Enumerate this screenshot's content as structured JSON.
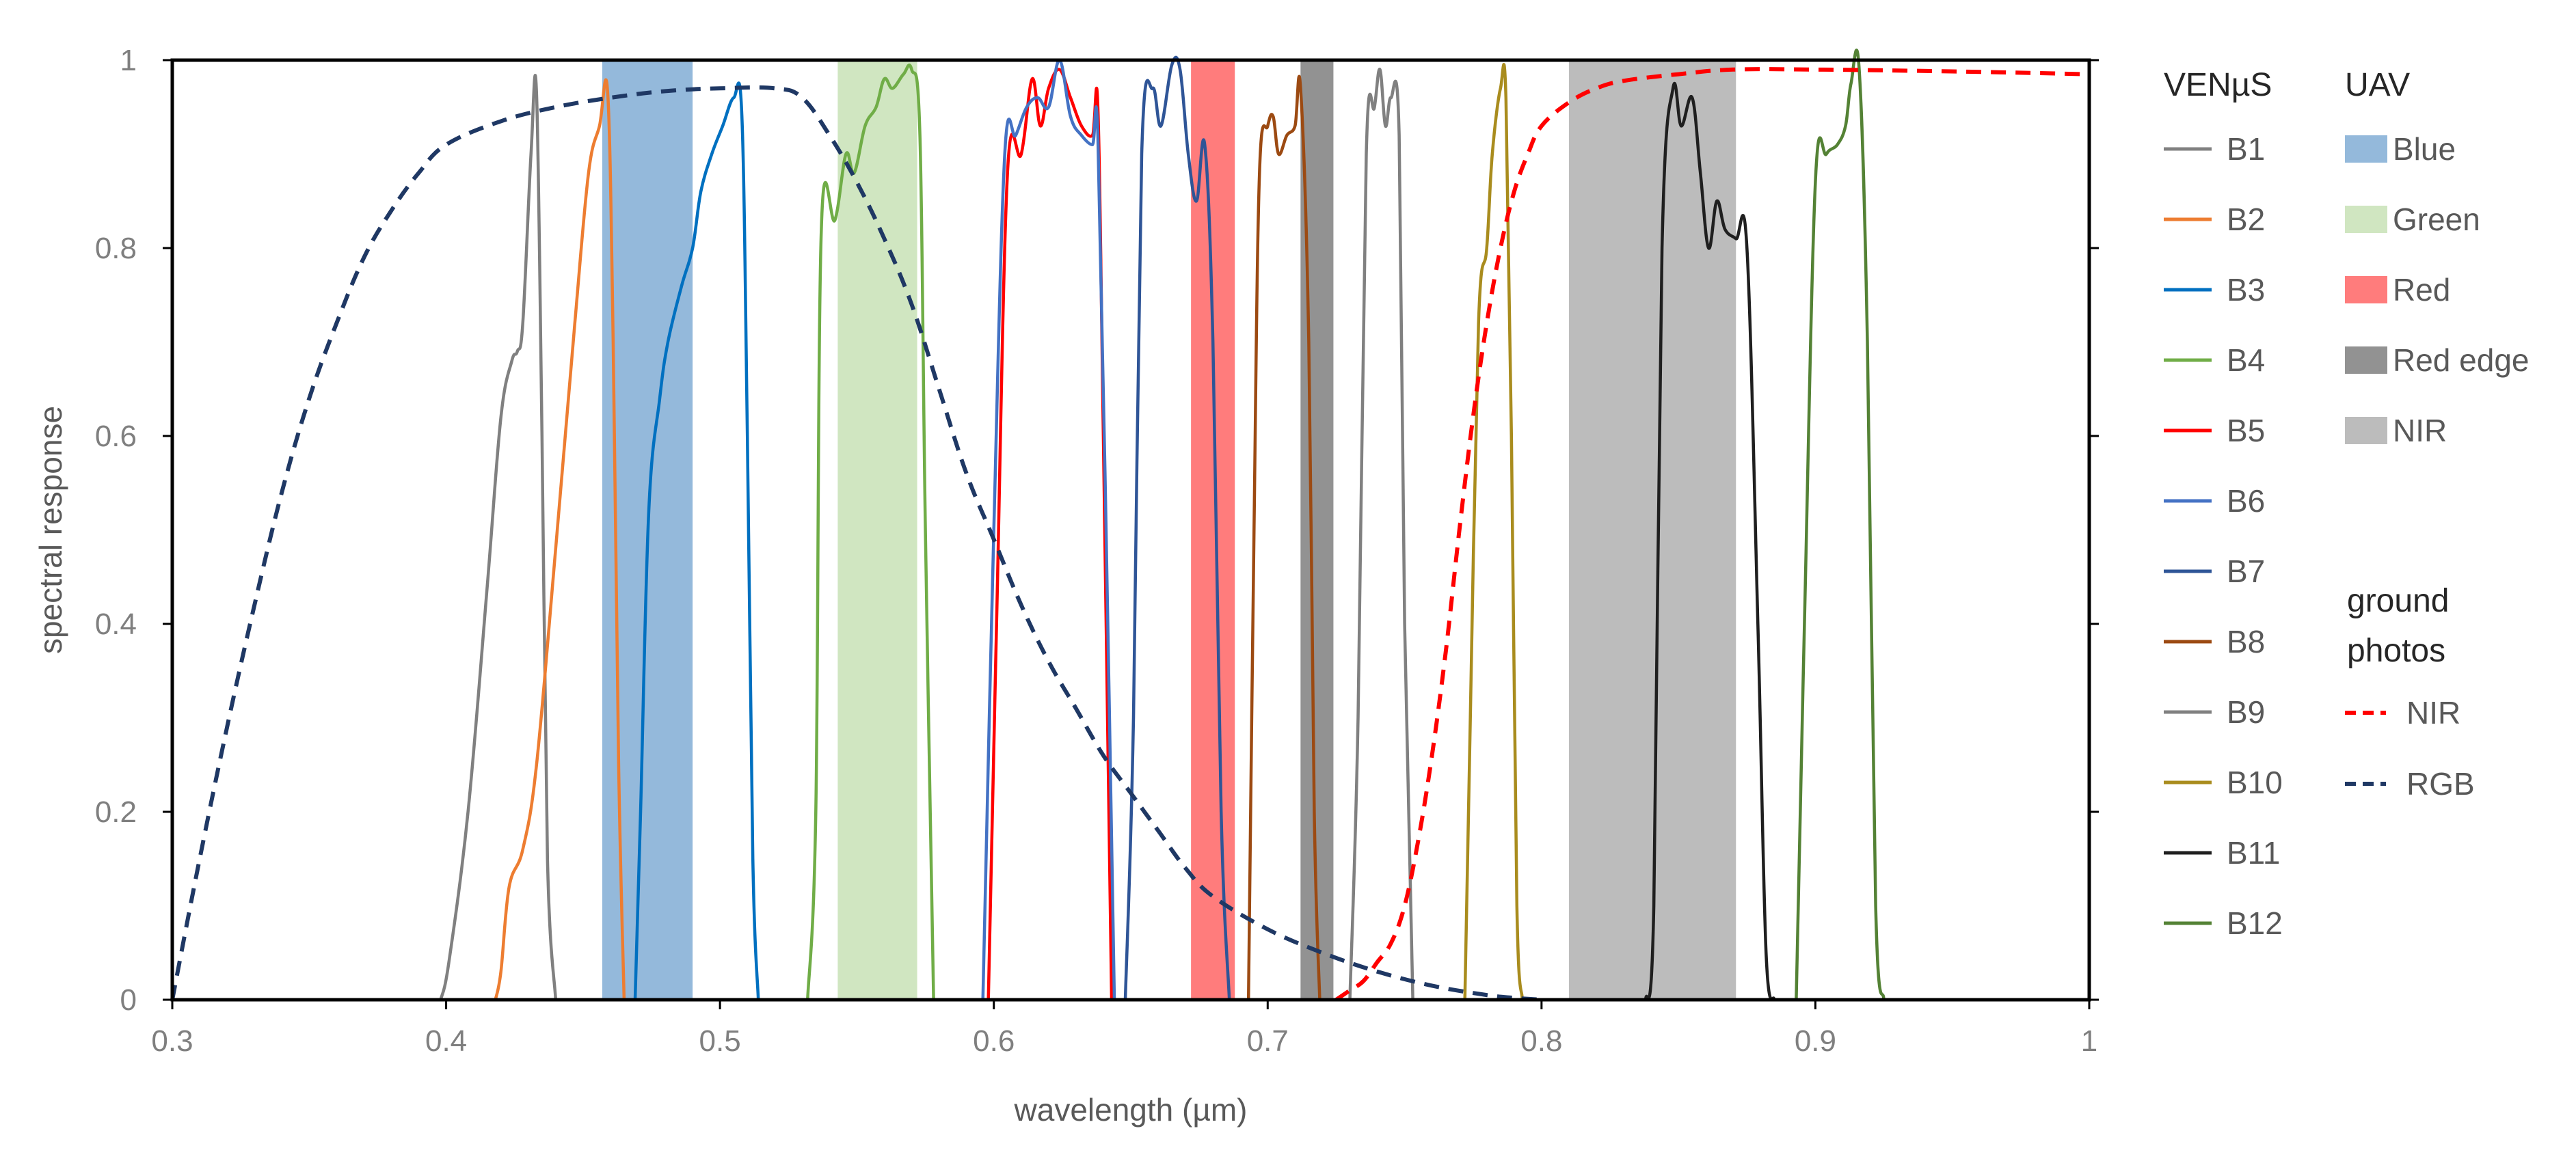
{
  "chart_data": {
    "type": "line",
    "title": "",
    "xlabel": "wavelength (µm)",
    "ylabel": "spectral response",
    "xlim": [
      0.3,
      1.0
    ],
    "ylim": [
      0,
      1
    ],
    "grid": false,
    "legend_placement": "right",
    "x_ticks": [
      {
        "value": 0.3,
        "label": "0.3"
      },
      {
        "value": 0.4,
        "label": "0.4"
      },
      {
        "value": 0.5,
        "label": "0.5"
      },
      {
        "value": 0.6,
        "label": "0.6"
      },
      {
        "value": 0.7,
        "label": "0.7"
      },
      {
        "value": 0.8,
        "label": "0.8"
      },
      {
        "value": 0.9,
        "label": "0.9"
      },
      {
        "value": 1.0,
        "label": "1"
      }
    ],
    "y_ticks": [
      {
        "value": 0,
        "label": "0"
      },
      {
        "value": 0.2,
        "label": "0.2"
      },
      {
        "value": 0.4,
        "label": "0.4"
      },
      {
        "value": 0.6,
        "label": "0.6"
      },
      {
        "value": 0.8,
        "label": "0.8"
      },
      {
        "value": 1.0,
        "label": "1"
      }
    ],
    "uav_bands": [
      {
        "name": "Blue",
        "range": [
          0.457,
          0.49
        ],
        "color": "#5b94c8",
        "opacity": 0.65
      },
      {
        "name": "Green",
        "range": [
          0.543,
          0.572
        ],
        "color": "#a9d18e",
        "opacity": 0.55
      },
      {
        "name": "Red",
        "range": [
          0.672,
          0.688
        ],
        "color": "#ff5050",
        "opacity": 0.75
      },
      {
        "name": "Red edge",
        "range": [
          0.712,
          0.724
        ],
        "color": "#7f7f7f",
        "opacity": 0.85
      },
      {
        "name": "NIR",
        "range": [
          0.81,
          0.871
        ],
        "color": "#a6a6a6",
        "opacity": 0.75
      }
    ],
    "venus_series": [
      {
        "name": "B1",
        "color": "#808080",
        "points": [
          [
            0.398,
            0
          ],
          [
            0.401,
            0.04
          ],
          [
            0.408,
            0.2
          ],
          [
            0.415,
            0.44
          ],
          [
            0.42,
            0.62
          ],
          [
            0.424,
            0.68
          ],
          [
            0.426,
            0.69
          ],
          [
            0.428,
            0.72
          ],
          [
            0.431,
            0.9
          ],
          [
            0.433,
            0.965
          ],
          [
            0.435,
            0.6
          ],
          [
            0.437,
            0.15
          ],
          [
            0.44,
            0
          ]
        ]
      },
      {
        "name": "B2",
        "color": "#ed7d31",
        "points": [
          [
            0.418,
            0
          ],
          [
            0.42,
            0.03
          ],
          [
            0.423,
            0.12
          ],
          [
            0.428,
            0.16
          ],
          [
            0.433,
            0.25
          ],
          [
            0.44,
            0.48
          ],
          [
            0.447,
            0.72
          ],
          [
            0.452,
            0.88
          ],
          [
            0.456,
            0.93
          ],
          [
            0.459,
            0.965
          ],
          [
            0.461,
            0.7
          ],
          [
            0.463,
            0.25
          ],
          [
            0.465,
            0
          ]
        ]
      },
      {
        "name": "B3",
        "color": "#0070c0",
        "points": [
          [
            0.469,
            0
          ],
          [
            0.471,
            0.2
          ],
          [
            0.474,
            0.52
          ],
          [
            0.478,
            0.64
          ],
          [
            0.481,
            0.7
          ],
          [
            0.486,
            0.76
          ],
          [
            0.49,
            0.8
          ],
          [
            0.493,
            0.86
          ],
          [
            0.497,
            0.9
          ],
          [
            0.501,
            0.93
          ],
          [
            0.505,
            0.96
          ],
          [
            0.508,
            0.94
          ],
          [
            0.51,
            0.6
          ],
          [
            0.512,
            0.15
          ],
          [
            0.514,
            0
          ]
        ]
      },
      {
        "name": "B4",
        "color": "#70ad47",
        "points": [
          [
            0.532,
            0
          ],
          [
            0.535,
            0.2
          ],
          [
            0.537,
            0.82
          ],
          [
            0.542,
            0.83
          ],
          [
            0.546,
            0.9
          ],
          [
            0.549,
            0.88
          ],
          [
            0.553,
            0.93
          ],
          [
            0.557,
            0.95
          ],
          [
            0.56,
            0.98
          ],
          [
            0.563,
            0.97
          ],
          [
            0.567,
            0.985
          ],
          [
            0.57,
            0.99
          ],
          [
            0.573,
            0.92
          ],
          [
            0.575,
            0.5
          ],
          [
            0.578,
            0
          ]
        ]
      },
      {
        "name": "B5",
        "color": "#ff0000",
        "points": [
          [
            0.598,
            0
          ],
          [
            0.601,
            0.4
          ],
          [
            0.605,
            0.88
          ],
          [
            0.61,
            0.9
          ],
          [
            0.614,
            0.98
          ],
          [
            0.617,
            0.93
          ],
          [
            0.62,
            0.97
          ],
          [
            0.624,
            0.99
          ],
          [
            0.628,
            0.96
          ],
          [
            0.632,
            0.93
          ],
          [
            0.636,
            0.92
          ],
          [
            0.638,
            0.95
          ],
          [
            0.64,
            0.6
          ],
          [
            0.643,
            0
          ]
        ]
      },
      {
        "name": "B6",
        "color": "#4472c4",
        "points": [
          [
            0.596,
            0
          ],
          [
            0.6,
            0.5
          ],
          [
            0.604,
            0.9
          ],
          [
            0.608,
            0.92
          ],
          [
            0.612,
            0.95
          ],
          [
            0.616,
            0.96
          ],
          [
            0.62,
            0.95
          ],
          [
            0.624,
            1.0
          ],
          [
            0.628,
            0.94
          ],
          [
            0.632,
            0.92
          ],
          [
            0.636,
            0.91
          ],
          [
            0.638,
            0.92
          ],
          [
            0.641,
            0.5
          ],
          [
            0.644,
            0
          ]
        ]
      },
      {
        "name": "B7",
        "color": "#2f5597",
        "points": [
          [
            0.648,
            0
          ],
          [
            0.651,
            0.3
          ],
          [
            0.654,
            0.9
          ],
          [
            0.658,
            0.97
          ],
          [
            0.661,
            0.93
          ],
          [
            0.665,
            0.995
          ],
          [
            0.668,
            0.99
          ],
          [
            0.671,
            0.9
          ],
          [
            0.674,
            0.85
          ],
          [
            0.677,
            0.91
          ],
          [
            0.68,
            0.7
          ],
          [
            0.683,
            0.2
          ],
          [
            0.686,
            0
          ]
        ]
      },
      {
        "name": "B8",
        "color": "#9c4a12",
        "points": [
          [
            0.693,
            0
          ],
          [
            0.695,
            0.5
          ],
          [
            0.697,
            0.88
          ],
          [
            0.7,
            0.93
          ],
          [
            0.702,
            0.94
          ],
          [
            0.704,
            0.9
          ],
          [
            0.707,
            0.92
          ],
          [
            0.71,
            0.93
          ],
          [
            0.712,
            0.97
          ],
          [
            0.715,
            0.7
          ],
          [
            0.717,
            0.2
          ],
          [
            0.719,
            0
          ]
        ]
      },
      {
        "name": "B9",
        "color": "#808080",
        "points": [
          [
            0.73,
            0
          ],
          [
            0.733,
            0.3
          ],
          [
            0.736,
            0.9
          ],
          [
            0.739,
            0.95
          ],
          [
            0.741,
            0.99
          ],
          [
            0.743,
            0.93
          ],
          [
            0.745,
            0.96
          ],
          [
            0.748,
            0.92
          ],
          [
            0.75,
            0.4
          ],
          [
            0.753,
            0
          ]
        ]
      },
      {
        "name": "B10",
        "color": "#a98c1e",
        "points": [
          [
            0.772,
            0
          ],
          [
            0.774,
            0.3
          ],
          [
            0.777,
            0.72
          ],
          [
            0.78,
            0.8
          ],
          [
            0.782,
            0.9
          ],
          [
            0.785,
            0.97
          ],
          [
            0.787,
            0.96
          ],
          [
            0.789,
            0.6
          ],
          [
            0.791,
            0.1
          ],
          [
            0.793,
            0
          ]
        ]
      },
      {
        "name": "B11",
        "color": "#1f1f1f",
        "points": [
          [
            0.838,
            0
          ],
          [
            0.841,
            0.1
          ],
          [
            0.844,
            0.8
          ],
          [
            0.848,
            0.97
          ],
          [
            0.851,
            0.93
          ],
          [
            0.855,
            0.96
          ],
          [
            0.858,
            0.88
          ],
          [
            0.861,
            0.8
          ],
          [
            0.864,
            0.85
          ],
          [
            0.867,
            0.82
          ],
          [
            0.871,
            0.81
          ],
          [
            0.875,
            0.8
          ],
          [
            0.879,
            0.4
          ],
          [
            0.882,
            0.05
          ],
          [
            0.885,
            0
          ]
        ]
      },
      {
        "name": "B12",
        "color": "#548235",
        "points": [
          [
            0.893,
            0
          ],
          [
            0.896,
            0.4
          ],
          [
            0.9,
            0.87
          ],
          [
            0.904,
            0.9
          ],
          [
            0.908,
            0.91
          ],
          [
            0.911,
            0.93
          ],
          [
            0.913,
            0.975
          ],
          [
            0.916,
            0.99
          ],
          [
            0.919,
            0.7
          ],
          [
            0.922,
            0.1
          ],
          [
            0.925,
            0
          ]
        ]
      }
    ],
    "ground_photos": [
      {
        "name": "NIR",
        "color": "#ff0000",
        "dash": "dashed",
        "points": [
          [
            0.725,
            0
          ],
          [
            0.73,
            0.01
          ],
          [
            0.735,
            0.02
          ],
          [
            0.74,
            0.04
          ],
          [
            0.745,
            0.06
          ],
          [
            0.75,
            0.1
          ],
          [
            0.755,
            0.17
          ],
          [
            0.76,
            0.26
          ],
          [
            0.765,
            0.37
          ],
          [
            0.77,
            0.5
          ],
          [
            0.775,
            0.62
          ],
          [
            0.78,
            0.72
          ],
          [
            0.785,
            0.8
          ],
          [
            0.79,
            0.86
          ],
          [
            0.795,
            0.9
          ],
          [
            0.8,
            0.93
          ],
          [
            0.81,
            0.955
          ],
          [
            0.82,
            0.97
          ],
          [
            0.83,
            0.978
          ],
          [
            0.85,
            0.985
          ],
          [
            0.87,
            0.99
          ],
          [
            0.9,
            0.99
          ],
          [
            0.95,
            0.988
          ],
          [
            1.0,
            0.985
          ]
        ]
      },
      {
        "name": "RGB",
        "color": "#1f3864",
        "dash": "dashed",
        "points": [
          [
            0.3,
            0.0
          ],
          [
            0.31,
            0.15
          ],
          [
            0.32,
            0.29
          ],
          [
            0.33,
            0.42
          ],
          [
            0.34,
            0.54
          ],
          [
            0.35,
            0.64
          ],
          [
            0.36,
            0.72
          ],
          [
            0.37,
            0.79
          ],
          [
            0.38,
            0.84
          ],
          [
            0.39,
            0.88
          ],
          [
            0.4,
            0.91
          ],
          [
            0.42,
            0.935
          ],
          [
            0.44,
            0.95
          ],
          [
            0.46,
            0.96
          ],
          [
            0.48,
            0.967
          ],
          [
            0.5,
            0.97
          ],
          [
            0.52,
            0.97
          ],
          [
            0.53,
            0.96
          ],
          [
            0.54,
            0.92
          ],
          [
            0.55,
            0.87
          ],
          [
            0.56,
            0.81
          ],
          [
            0.57,
            0.74
          ],
          [
            0.58,
            0.65
          ],
          [
            0.59,
            0.56
          ],
          [
            0.6,
            0.49
          ],
          [
            0.61,
            0.42
          ],
          [
            0.62,
            0.36
          ],
          [
            0.63,
            0.31
          ],
          [
            0.64,
            0.26
          ],
          [
            0.65,
            0.22
          ],
          [
            0.66,
            0.18
          ],
          [
            0.67,
            0.14
          ],
          [
            0.68,
            0.11
          ],
          [
            0.7,
            0.075
          ],
          [
            0.72,
            0.05
          ],
          [
            0.74,
            0.03
          ],
          [
            0.76,
            0.015
          ],
          [
            0.78,
            0.005
          ],
          [
            0.79,
            0.002
          ],
          [
            0.8,
            0
          ]
        ]
      }
    ],
    "legend": {
      "venus_header": "VENµS",
      "uav_header": "UAV",
      "ground_header_line1": "ground",
      "ground_header_line2": "photos"
    }
  }
}
